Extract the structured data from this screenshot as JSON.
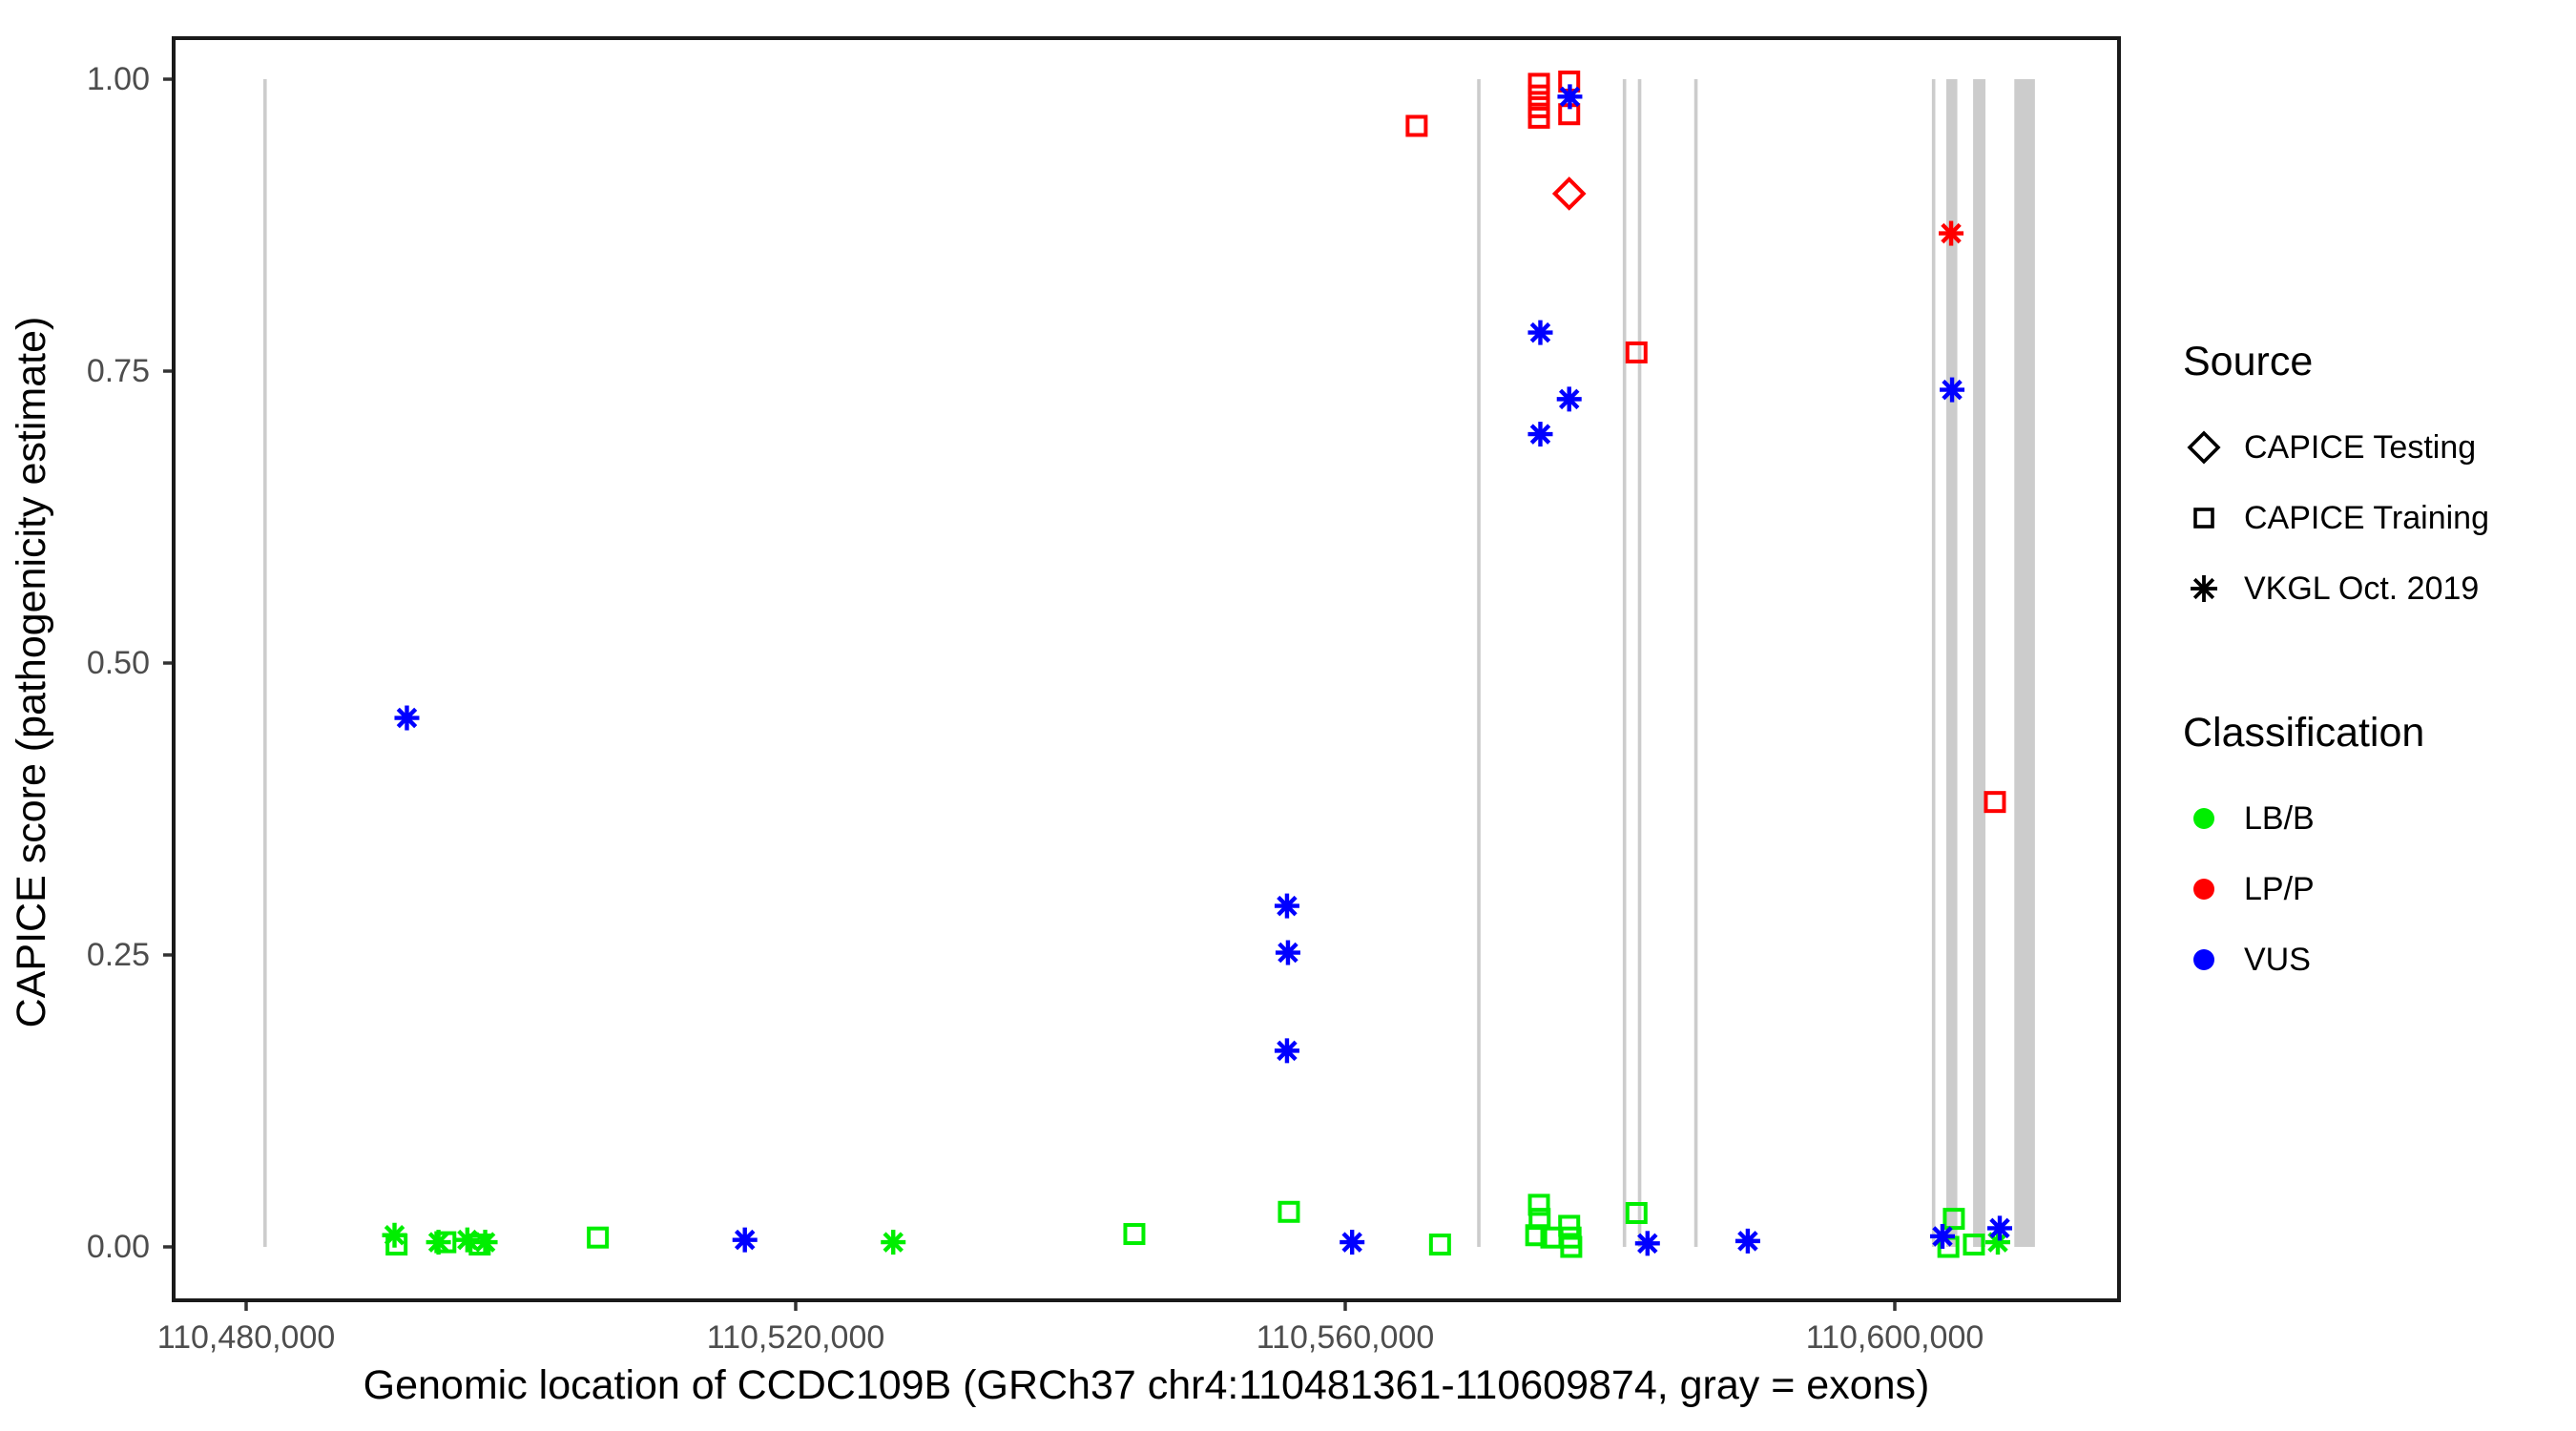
{
  "figure": {
    "y_axis": {
      "title": "CAPICE score (pathogenicity estimate)",
      "tick_labels": [
        "1.00",
        "0.75",
        "0.50",
        "0.25",
        "0.00"
      ],
      "tick_values": [
        1.0,
        0.75,
        0.5,
        0.25,
        0.0
      ]
    },
    "x_axis": {
      "title": "Genomic location of CCDC109B (GRCh37 chr4:110481361-110609874, gray = exons)",
      "tick_labels": [
        "110,480,000",
        "110,520,000",
        "110,560,000",
        "110,600,000"
      ],
      "tick_values": [
        110480000,
        110520000,
        110560000,
        110600000
      ]
    }
  },
  "legend": {
    "source": {
      "title": "Source",
      "items": [
        {
          "label": "CAPICE Testing",
          "shape": "diamond"
        },
        {
          "label": "CAPICE Training",
          "shape": "square"
        },
        {
          "label": "VKGL Oct. 2019",
          "shape": "asterisk"
        }
      ]
    },
    "classification": {
      "title": "Classification",
      "items": [
        {
          "label": "LB/B",
          "color": "#00EE00"
        },
        {
          "label": "LP/P",
          "color": "#FF0000"
        },
        {
          "label": "VUS",
          "color": "#0000FF"
        }
      ]
    }
  },
  "chart_data": {
    "type": "scatter",
    "title": "",
    "xlabel": "Genomic location of CCDC109B (GRCh37 chr4:110481361-110609874, gray = exons)",
    "ylabel": "CAPICE score (pathogenicity estimate)",
    "x_range": [
      110474900,
      110616400
    ],
    "y_range": [
      -0.046,
      1.035
    ],
    "grid": false,
    "exon_color": "#CCCCCC",
    "exons": [
      {
        "start": 110481250,
        "end": 110481500
      },
      {
        "start": 110569600,
        "end": 110569850
      },
      {
        "start": 110580200,
        "end": 110580450
      },
      {
        "start": 110581300,
        "end": 110581550
      },
      {
        "start": 110585400,
        "end": 110585650
      },
      {
        "start": 110602700,
        "end": 110602950
      },
      {
        "start": 110603750,
        "end": 110604550
      },
      {
        "start": 110605700,
        "end": 110606600
      },
      {
        "start": 110608700,
        "end": 110610200
      }
    ],
    "series_note": "source: testing=open diamond, training=open square, vkgl=8-spoke asterisk; cls: LB/B=green, LP/P=red, VUS=blue",
    "points": [
      {
        "x": 110490800,
        "y": 0.01,
        "source": "vkgl",
        "cls": "LB/B"
      },
      {
        "x": 110490950,
        "y": 0.002,
        "source": "training",
        "cls": "LB/B"
      },
      {
        "x": 110494000,
        "y": 0.004,
        "source": "vkgl",
        "cls": "LB/B"
      },
      {
        "x": 110494500,
        "y": 0.004,
        "source": "training",
        "cls": "LB/B"
      },
      {
        "x": 110496100,
        "y": 0.006,
        "source": "vkgl",
        "cls": "LB/B"
      },
      {
        "x": 110497000,
        "y": 0.002,
        "source": "training",
        "cls": "LB/B"
      },
      {
        "x": 110497400,
        "y": 0.004,
        "source": "vkgl",
        "cls": "LB/B"
      },
      {
        "x": 110505600,
        "y": 0.008,
        "source": "training",
        "cls": "LB/B"
      },
      {
        "x": 110527100,
        "y": 0.004,
        "source": "vkgl",
        "cls": "LB/B"
      },
      {
        "x": 110544650,
        "y": 0.011,
        "source": "training",
        "cls": "LB/B"
      },
      {
        "x": 110555900,
        "y": 0.03,
        "source": "training",
        "cls": "LB/B"
      },
      {
        "x": 110566900,
        "y": 0.002,
        "source": "training",
        "cls": "LB/B"
      },
      {
        "x": 110574100,
        "y": 0.036,
        "source": "training",
        "cls": "LB/B"
      },
      {
        "x": 110574150,
        "y": 0.024,
        "source": "training",
        "cls": "LB/B"
      },
      {
        "x": 110573900,
        "y": 0.01,
        "source": "training",
        "cls": "LB/B"
      },
      {
        "x": 110575000,
        "y": 0.008,
        "source": "training",
        "cls": "LB/B"
      },
      {
        "x": 110576300,
        "y": 0.018,
        "source": "training",
        "cls": "LB/B"
      },
      {
        "x": 110576400,
        "y": 0.008,
        "source": "training",
        "cls": "LB/B"
      },
      {
        "x": 110576450,
        "y": 0.0,
        "source": "training",
        "cls": "LB/B"
      },
      {
        "x": 110581200,
        "y": 0.029,
        "source": "training",
        "cls": "LB/B"
      },
      {
        "x": 110603900,
        "y": 0.0,
        "source": "training",
        "cls": "LB/B"
      },
      {
        "x": 110604300,
        "y": 0.024,
        "source": "training",
        "cls": "LB/B"
      },
      {
        "x": 110605760,
        "y": 0.002,
        "source": "training",
        "cls": "LB/B"
      },
      {
        "x": 110607500,
        "y": 0.004,
        "source": "vkgl",
        "cls": "LB/B"
      },
      {
        "x": 110565200,
        "y": 0.96,
        "source": "training",
        "cls": "LP/P"
      },
      {
        "x": 110574100,
        "y": 0.996,
        "source": "training",
        "cls": "LP/P"
      },
      {
        "x": 110574100,
        "y": 0.986,
        "source": "training",
        "cls": "LP/P"
      },
      {
        "x": 110574100,
        "y": 0.976,
        "source": "training",
        "cls": "LP/P"
      },
      {
        "x": 110574100,
        "y": 0.967,
        "source": "training",
        "cls": "LP/P"
      },
      {
        "x": 110576300,
        "y": 0.998,
        "source": "training",
        "cls": "LP/P"
      },
      {
        "x": 110576300,
        "y": 0.97,
        "source": "training",
        "cls": "LP/P"
      },
      {
        "x": 110576300,
        "y": 0.902,
        "source": "testing",
        "cls": "LP/P"
      },
      {
        "x": 110581200,
        "y": 0.766,
        "source": "training",
        "cls": "LP/P"
      },
      {
        "x": 110604100,
        "y": 0.868,
        "source": "vkgl",
        "cls": "LP/P"
      },
      {
        "x": 110607290,
        "y": 0.381,
        "source": "training",
        "cls": "LP/P"
      },
      {
        "x": 110491700,
        "y": 0.453,
        "source": "vkgl",
        "cls": "VUS"
      },
      {
        "x": 110516300,
        "y": 0.006,
        "source": "vkgl",
        "cls": "VUS"
      },
      {
        "x": 110555760,
        "y": 0.292,
        "source": "vkgl",
        "cls": "VUS"
      },
      {
        "x": 110555830,
        "y": 0.252,
        "source": "vkgl",
        "cls": "VUS"
      },
      {
        "x": 110555760,
        "y": 0.168,
        "source": "vkgl",
        "cls": "VUS"
      },
      {
        "x": 110560500,
        "y": 0.004,
        "source": "vkgl",
        "cls": "VUS"
      },
      {
        "x": 110576350,
        "y": 0.985,
        "source": "vkgl",
        "cls": "VUS"
      },
      {
        "x": 110574200,
        "y": 0.783,
        "source": "vkgl",
        "cls": "VUS"
      },
      {
        "x": 110576300,
        "y": 0.726,
        "source": "vkgl",
        "cls": "VUS"
      },
      {
        "x": 110574200,
        "y": 0.696,
        "source": "vkgl",
        "cls": "VUS"
      },
      {
        "x": 110582000,
        "y": 0.003,
        "source": "vkgl",
        "cls": "VUS"
      },
      {
        "x": 110589300,
        "y": 0.005,
        "source": "vkgl",
        "cls": "VUS"
      },
      {
        "x": 110604170,
        "y": 0.734,
        "source": "vkgl",
        "cls": "VUS"
      },
      {
        "x": 110603470,
        "y": 0.009,
        "source": "vkgl",
        "cls": "VUS"
      },
      {
        "x": 110607640,
        "y": 0.016,
        "source": "vkgl",
        "cls": "VUS"
      }
    ],
    "class_colors": {
      "LB/B": "#00EE00",
      "LP/P": "#FF0000",
      "VUS": "#0000FF"
    }
  }
}
